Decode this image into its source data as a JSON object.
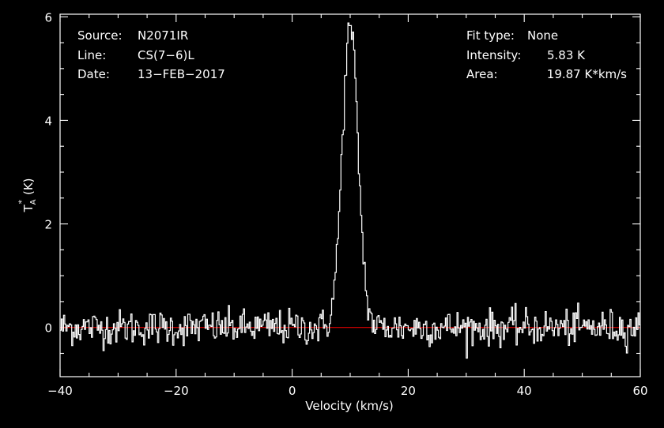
{
  "chart_data": {
    "type": "line",
    "xlabel": "Velocity (km/s)",
    "ylabel": "T",
    "ylabel_sub": "A",
    "ylabel_sup": "*",
    "ylabel_unit": "(K)",
    "xlim": [
      -40,
      60
    ],
    "ylim": [
      -0.95,
      6.05
    ],
    "xticks": [
      -40,
      -20,
      0,
      20,
      40,
      60
    ],
    "xtick_labels": [
      "−40",
      "−20",
      "0",
      "20",
      "40",
      "60"
    ],
    "yticks": [
      0,
      2,
      4,
      6
    ],
    "ytick_labels": [
      "0",
      "2",
      "4",
      "6"
    ],
    "baseline": 0,
    "grid": false,
    "colors": {
      "background": "#000000",
      "axes": "#ffffff",
      "spectrum": "#ffffff",
      "baseline": "#dd0000"
    },
    "line_peak": {
      "center_kms": 10.0,
      "peak_K": 5.83,
      "fwhm_kms": 3.2
    },
    "noise_rms_K": 0.17,
    "channel_kms": 0.2,
    "annotations": {
      "source_label": "Source:",
      "source_value": "N2071IR",
      "line_label": "Line:",
      "line_value": "CS(7−6)L",
      "date_label": "Date:",
      "date_value": "13−FEB−2017",
      "fit_label": "Fit type:",
      "fit_value": "None",
      "intensity_label": "Intensity:",
      "intensity_value": "5.83 K",
      "area_label": "Area:",
      "area_value": "19.87 K*km/s"
    }
  }
}
